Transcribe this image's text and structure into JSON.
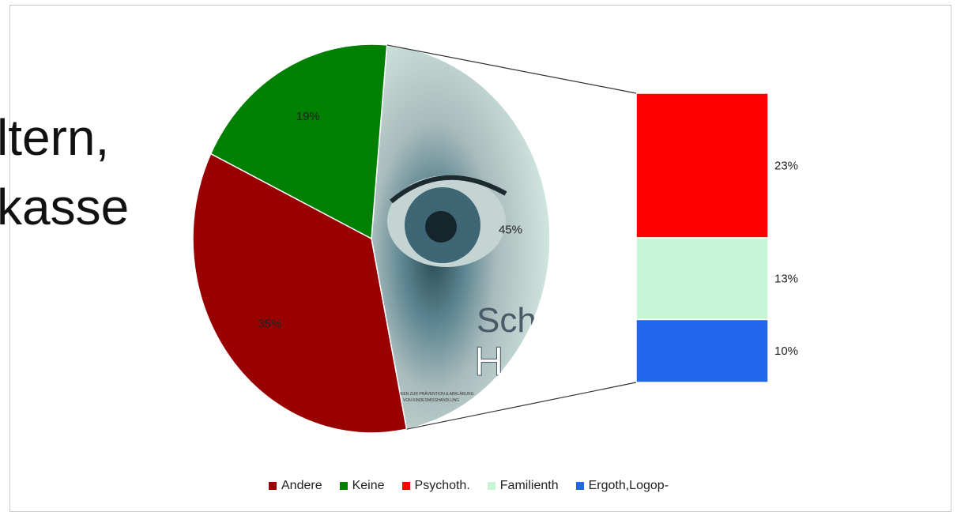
{
  "background_text": [
    "ltern,",
    "kasse"
  ],
  "chart_data": {
    "type": "pie",
    "variant": "bar-of-pie",
    "pie": [
      {
        "label": "Andere",
        "value": 35,
        "value_label": "35%",
        "color": "#990000"
      },
      {
        "label": "Keine",
        "value": 19,
        "value_label": "19%",
        "color": "#008000"
      },
      {
        "label": "",
        "value": 45,
        "value_label": "45%",
        "color": "#b9d3d0",
        "note": "image-filled slice split into bar"
      }
    ],
    "bar": [
      {
        "label": "Psychoth.",
        "value": 23,
        "value_label": "23%",
        "color": "#ff0000"
      },
      {
        "label": "Familienth",
        "value": 13,
        "value_label": "13%",
        "color": "#c6f6d5"
      },
      {
        "label": "Ergoth,Logop-",
        "value": 10,
        "value_label": "10%",
        "color": "#2266ee"
      }
    ],
    "legend_placement": "bottom",
    "legend": [
      {
        "label": "Andere",
        "color": "#990000"
      },
      {
        "label": "Keine",
        "color": "#008000"
      },
      {
        "label": "Psychoth.",
        "color": "#ff0000"
      },
      {
        "label": "Familienth",
        "color": "#c6f6d5"
      },
      {
        "label": "Ergoth,Logop-",
        "color": "#2266ee"
      }
    ],
    "slice_image_text": [
      "Scha",
      "H",
      "IDEEN ZUR PRÄVENTION & ABKLÄRUNG",
      "VON KINDESMISSHANDLUNG"
    ]
  }
}
